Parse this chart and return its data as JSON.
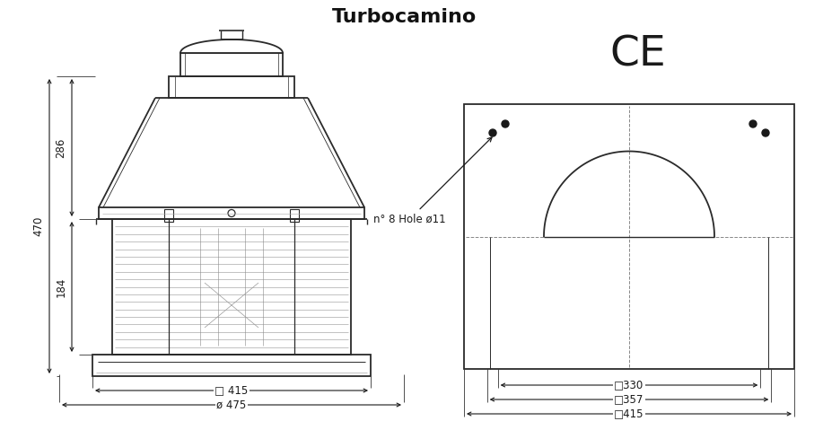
{
  "title": "Turbocamino",
  "title_fontsize": 16,
  "bg_color": "#ffffff",
  "line_color": "#2a2a2a",
  "dim_color": "#1a1a1a",
  "ce_text": "CE",
  "hole_label": "n° 8 Hole ø11",
  "dim_470": "470",
  "dim_286": "286",
  "dim_184": "184",
  "dim_415_front": "□ 415",
  "dim_475": "ø 475",
  "dim_330": "□330",
  "dim_357": "□357",
  "dim_415_top": "□415"
}
